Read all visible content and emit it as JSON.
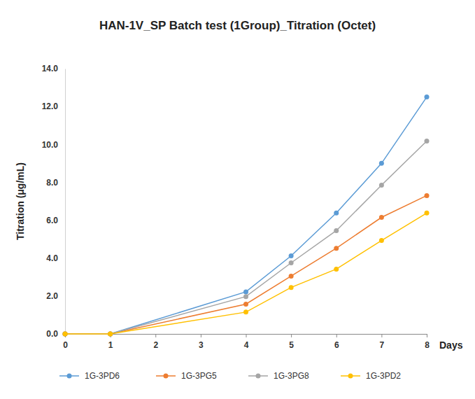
{
  "chart_data": {
    "type": "line",
    "title": "HAN-1V_SP Batch test (1Group)_Titration (Octet)",
    "x_label": "Days",
    "y_label": "Titration (μg/mL)",
    "x": [
      0,
      1,
      4,
      5,
      6,
      7,
      8
    ],
    "series": [
      {
        "name": "1G-3PD6",
        "color": "#5b9bd5",
        "values": [
          0,
          0,
          2.22,
          4.12,
          6.38,
          9.0,
          12.5
        ]
      },
      {
        "name": "1G-3PG5",
        "color": "#ed7d31",
        "values": [
          0,
          0,
          1.57,
          3.05,
          4.52,
          6.15,
          7.3
        ]
      },
      {
        "name": "1G-3PG8",
        "color": "#a5a5a5",
        "values": [
          0,
          0,
          1.97,
          3.75,
          5.45,
          7.85,
          10.18
        ]
      },
      {
        "name": "1G-3PD2",
        "color": "#ffc000",
        "values": [
          0,
          0,
          1.15,
          2.45,
          3.42,
          4.93,
          6.38
        ]
      }
    ],
    "xlim": [
      0,
      8
    ],
    "xticks": [
      0,
      1,
      2,
      3,
      4,
      5,
      6,
      7,
      8
    ],
    "ylim": [
      0,
      14
    ],
    "yticks": [
      {
        "value": 0,
        "label": "0.0"
      },
      {
        "value": 2,
        "label": "2.0"
      },
      {
        "value": 4,
        "label": "4.0"
      },
      {
        "value": 6,
        "label": "6.0"
      },
      {
        "value": 8,
        "label": "8.0"
      },
      {
        "value": 10,
        "label": "10.0"
      },
      {
        "value": 12,
        "label": "12.0"
      },
      {
        "value": 14,
        "label": "14.0"
      }
    ],
    "grid": false,
    "legend": "bottom",
    "marker": "circle",
    "line_style": "solid"
  }
}
